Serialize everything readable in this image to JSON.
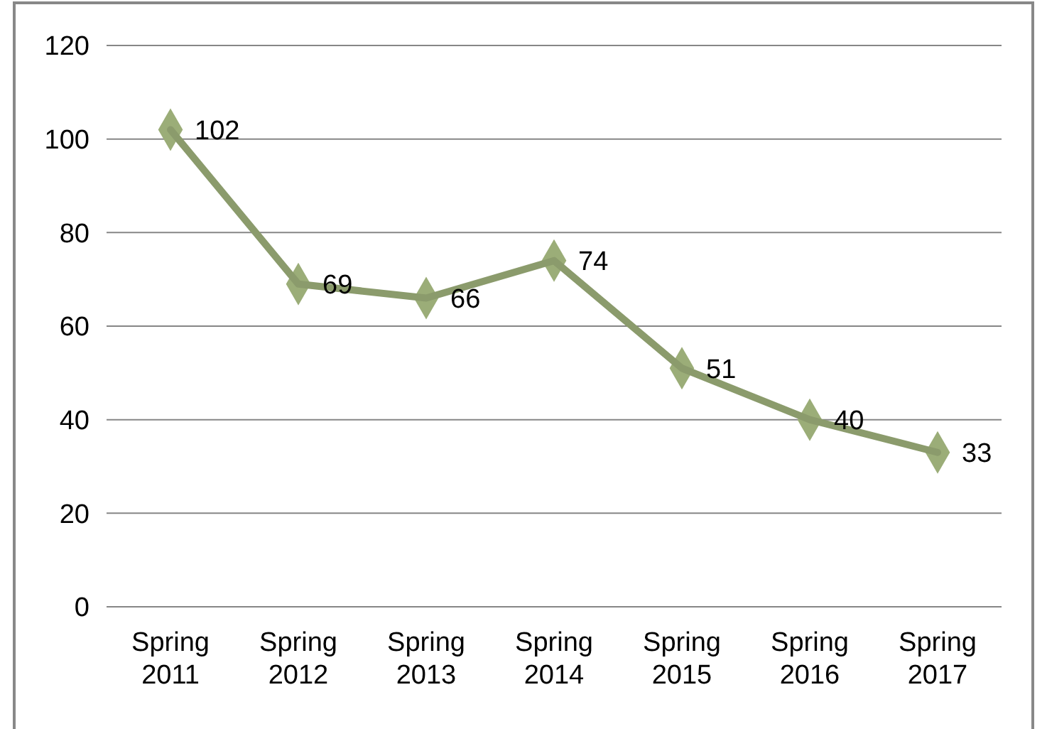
{
  "chart_data": {
    "type": "line",
    "categories": [
      "Spring 2011",
      "Spring 2012",
      "Spring 2013",
      "Spring 2014",
      "Spring 2015",
      "Spring 2016",
      "Spring 2017"
    ],
    "series": [
      {
        "color": "#9bad78",
        "values": [
          102,
          69,
          66,
          74,
          51,
          40,
          33
        ]
      }
    ],
    "ylim": [
      0,
      120
    ],
    "yticks": [
      0,
      20,
      40,
      60,
      80,
      100,
      120
    ],
    "grid": "y",
    "marker": "diamond",
    "line_style": "solid",
    "data_labels": true
  }
}
